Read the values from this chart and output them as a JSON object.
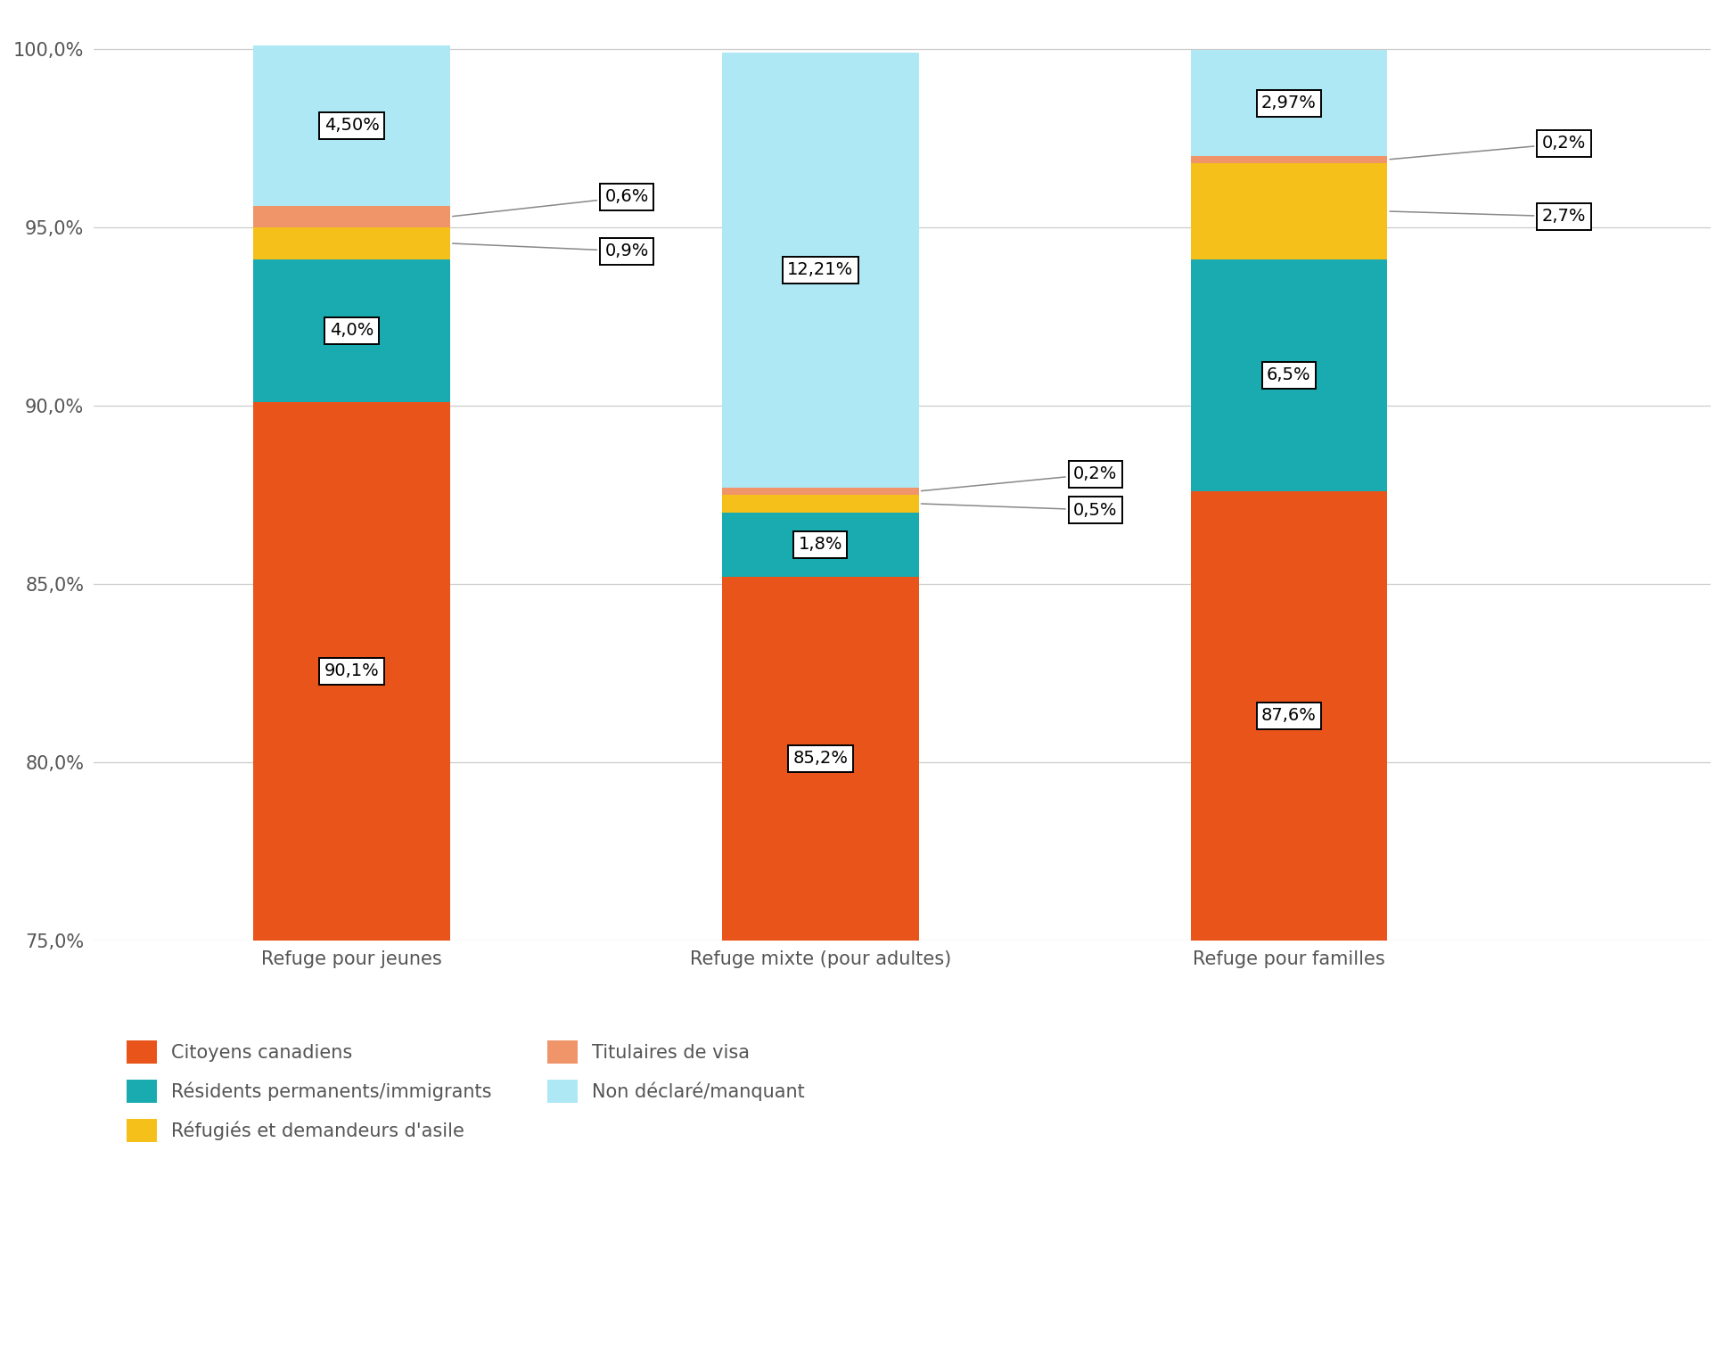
{
  "categories": [
    "Refuge pour jeunes",
    "Refuge mixte (pour adultes)",
    "Refuge pour familles"
  ],
  "series": {
    "Citoyens canadiens": [
      90.1,
      85.2,
      87.6
    ],
    "Résidents permanents/immigrants": [
      4.0,
      1.8,
      6.5
    ],
    "Réfugiés et demandeurs d'asile": [
      0.9,
      0.5,
      2.7
    ],
    "Titulaires de visa": [
      0.6,
      0.2,
      0.2
    ],
    "Non déclaré/manquant": [
      4.5,
      12.21,
      2.97
    ]
  },
  "colors": {
    "Citoyens canadiens": "#E8541A",
    "Résidents permanents/immigrants": "#1AABB0",
    "Réfugiés et demandeurs d'asile": "#F5C01A",
    "Titulaires de visa": "#F0956A",
    "Non déclaré/manquant": "#ADE8F4"
  },
  "labels": {
    "Citoyens canadiens": [
      "90,1%",
      "85,2%",
      "87,6%"
    ],
    "Résidents permanents/immigrants": [
      "4,0%",
      "1,8%",
      "6,5%"
    ],
    "Réfugiés et demandeurs d'asile": [
      "0,9%",
      "0,5%",
      "2,7%"
    ],
    "Titulaires de visa": [
      "0,6%",
      "0,2%",
      "0,2%"
    ],
    "Non déclaré/manquant": [
      "4,50%",
      "12,21%",
      "2,97%"
    ]
  },
  "ymin": 75.0,
  "ylim": [
    75.0,
    101.0
  ],
  "yticks": [
    75.0,
    80.0,
    85.0,
    90.0,
    95.0,
    100.0
  ],
  "ytick_labels": [
    "75,0%",
    "80,0%",
    "85,0%",
    "90,0%",
    "95,0%",
    "100,0%"
  ],
  "bar_width": 0.42,
  "background_color": "#FFFFFF",
  "grid_color": "#CCCCCC",
  "label_fontsize": 14,
  "tick_fontsize": 15,
  "legend_fontsize": 15
}
